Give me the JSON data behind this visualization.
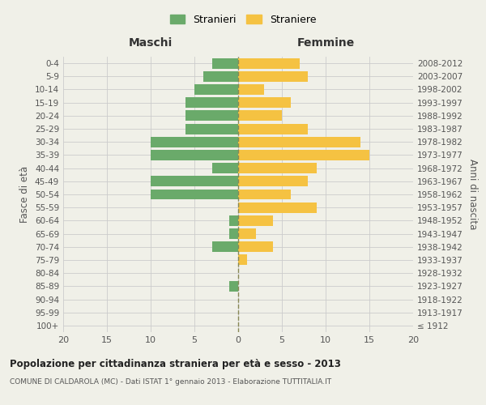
{
  "age_groups": [
    "100+",
    "95-99",
    "90-94",
    "85-89",
    "80-84",
    "75-79",
    "70-74",
    "65-69",
    "60-64",
    "55-59",
    "50-54",
    "45-49",
    "40-44",
    "35-39",
    "30-34",
    "25-29",
    "20-24",
    "15-19",
    "10-14",
    "5-9",
    "0-4"
  ],
  "birth_years": [
    "≤ 1912",
    "1913-1917",
    "1918-1922",
    "1923-1927",
    "1928-1932",
    "1933-1937",
    "1938-1942",
    "1943-1947",
    "1948-1952",
    "1953-1957",
    "1958-1962",
    "1963-1967",
    "1968-1972",
    "1973-1977",
    "1978-1982",
    "1983-1987",
    "1988-1992",
    "1993-1997",
    "1998-2002",
    "2003-2007",
    "2008-2012"
  ],
  "males": [
    0,
    0,
    0,
    1,
    0,
    0,
    3,
    1,
    1,
    0,
    10,
    10,
    3,
    10,
    10,
    6,
    6,
    6,
    5,
    4,
    3
  ],
  "females": [
    0,
    0,
    0,
    0,
    0,
    1,
    4,
    2,
    4,
    9,
    6,
    8,
    9,
    15,
    14,
    8,
    5,
    6,
    3,
    8,
    7
  ],
  "male_color": "#6aaa6a",
  "female_color": "#f5c242",
  "center_line_color": "#888855",
  "grid_color": "#cccccc",
  "background_color": "#f0f0e8",
  "title": "Popolazione per cittadinanza straniera per età e sesso - 2013",
  "subtitle": "COMUNE DI CALDAROLA (MC) - Dati ISTAT 1° gennaio 2013 - Elaborazione TUTTITALIA.IT",
  "xlabel_left": "Maschi",
  "xlabel_right": "Femmine",
  "ylabel_left": "Fasce di età",
  "ylabel_right": "Anni di nascita",
  "legend_male": "Stranieri",
  "legend_female": "Straniere",
  "xlim": 20,
  "bar_height": 0.8
}
